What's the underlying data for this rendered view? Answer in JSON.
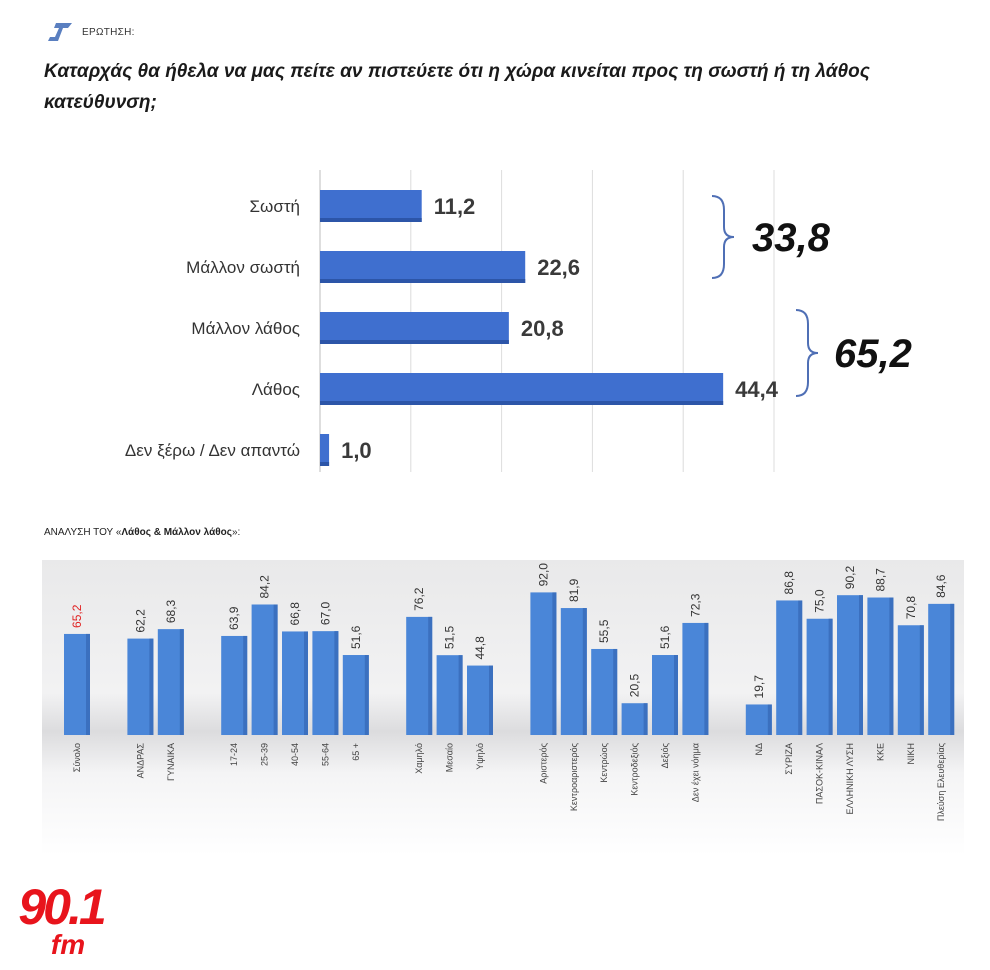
{
  "header": {
    "label": "ΕΡΩΤΗΣΗ:",
    "question": "Καταρχάς θα ήθελα να μας πείτε αν πιστεύετε ότι η χώρα κινείται προς τη σωστή ή τη λάθος κατεύθυνση;"
  },
  "breakdown": {
    "prefix": "ΑΝΑΛΥΣΗ ΤΟΥ «",
    "bold": "Λάθος & Μάλλον λάθος",
    "suffix": "»:"
  },
  "logo": {
    "number": "90.1",
    "suffix": "fm",
    "color": "#e8141c"
  },
  "chart_data": [
    {
      "type": "bar",
      "orientation": "horizontal",
      "categories": [
        "Σωστή",
        "Μάλλον σωστή",
        "Μάλλον λάθος",
        "Λάθος",
        "Δεν ξέρω / Δεν απαντώ"
      ],
      "values": [
        11.2,
        22.6,
        20.8,
        44.4,
        1.0
      ],
      "value_labels": [
        "11,2",
        "22,6",
        "20,8",
        "44,4",
        "1,0"
      ],
      "xlim": [
        0,
        70
      ],
      "grid": true,
      "bar_color": "#3f6fcf",
      "annotations": [
        {
          "text": "33,8",
          "groups": [
            0,
            1
          ]
        },
        {
          "text": "65,2",
          "groups": [
            2,
            3
          ]
        }
      ]
    },
    {
      "type": "bar",
      "categories": [
        "Σύνολο",
        "ΑΝΔΡΑΣ",
        "ΓΥΝΑΙΚΑ",
        "17-24",
        "25-39",
        "40-54",
        "55-64",
        "65 +",
        "Χαμηλό",
        "Μεσαίο",
        "Υψηλό",
        "Αριστερός",
        "Κεντροαριστερός",
        "Κεντρώος",
        "Κεντροδεξιός",
        "Δεξιός",
        "Δεν έχει νόημα",
        "ΝΔ",
        "ΣΥΡΙΖΑ",
        "ΠΑΣΟΚ-ΚΙΝΑΛ",
        "ΕΛΛΗΝΙΚΗ ΛΥΣΗ",
        "ΚΚΕ",
        "ΝΙΚΗ",
        "Πλεύση Ελευθερίας"
      ],
      "values": [
        65.2,
        62.2,
        68.3,
        63.9,
        84.2,
        66.8,
        67.0,
        51.6,
        76.2,
        51.5,
        44.8,
        92.0,
        81.9,
        55.5,
        20.5,
        51.6,
        72.3,
        19.7,
        86.8,
        75.0,
        90.2,
        88.7,
        70.8,
        84.6
      ],
      "value_labels": [
        "65,2",
        "62,2",
        "68,3",
        "63,9",
        "84,2",
        "66,8",
        "67,0",
        "51,6",
        "76,2",
        "51,5",
        "44,8",
        "92,0",
        "81,9",
        "55,5",
        "20,5",
        "51,6",
        "72,3",
        "19,7",
        "86,8",
        "75,0",
        "90,2",
        "88,7",
        "70,8",
        "84,6"
      ],
      "groups": [
        [
          0
        ],
        [
          1,
          2
        ],
        [
          3,
          4,
          5,
          6,
          7
        ],
        [
          8,
          9,
          10
        ],
        [
          11,
          12,
          13,
          14,
          15,
          16
        ],
        [
          17,
          18,
          19,
          20,
          21,
          22,
          23
        ]
      ],
      "highlight": {
        "index": 0,
        "color": "#e02020"
      },
      "bar_color": "#4a86d8",
      "ylim": [
        0,
        100
      ]
    }
  ]
}
